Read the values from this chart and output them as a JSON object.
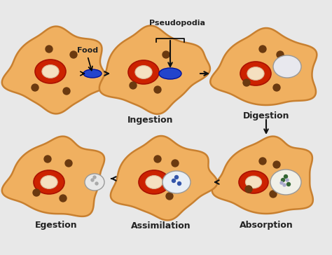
{
  "background_color": "#e8e8e8",
  "amoeba_color": "#f0b060",
  "amoeba_border": "#c88030",
  "nucleus_outer": "#cc2200",
  "nucleus_inner": "#f5e0c0",
  "food_color_blue": "#2244cc",
  "vacuole_white": "#f0f0f0",
  "vacuole_border": "#aaaaaa",
  "dot_color": "#6b3a10",
  "label_color": "#222222",
  "arrow_color": "#111111",
  "stages": [
    "Ingestion",
    "Digestion",
    "Absorption",
    "Assimilation",
    "Egestion"
  ],
  "stage_labels": {
    "ingestion": "Ingestion",
    "digestion": "Digestion",
    "absorption": "Absorption",
    "assimilation": "Assimilation",
    "egestion": "Egestion"
  },
  "food_label": "Food",
  "pseudo_label": "Pseudopodia"
}
